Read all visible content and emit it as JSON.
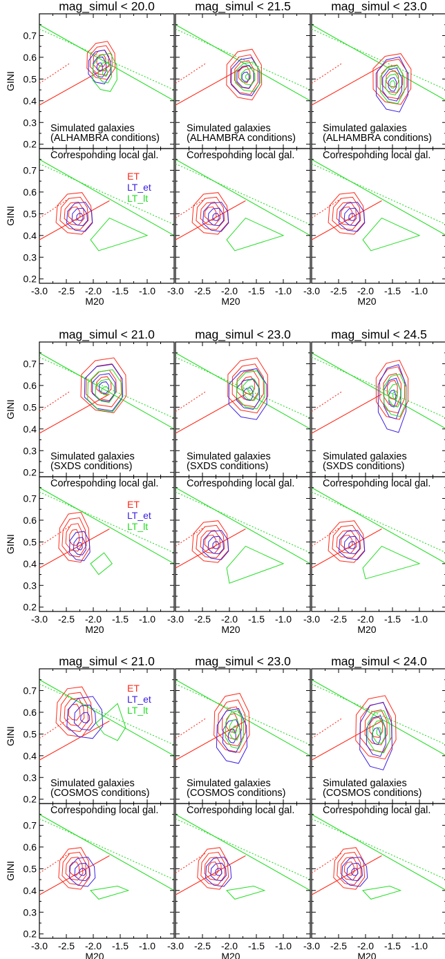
{
  "chart_data": {
    "type": "contour",
    "xlabel": "M20",
    "ylabel": "GINI",
    "xlim": [
      -3.0,
      -0.5
    ],
    "ylim": [
      0.18,
      0.8
    ],
    "xticks": [
      "-3.0",
      "-2.5",
      "-2.0",
      "-1.5",
      "-1.0"
    ],
    "yticks": [
      "0.2",
      "0.3",
      "0.4",
      "0.5",
      "0.6",
      "0.7"
    ],
    "legend": [
      {
        "label": "ET",
        "color": "#ff2a1a"
      },
      {
        "label": "LT_et",
        "color": "#3a1fe0"
      },
      {
        "label": "LT_lt",
        "color": "#22dd22"
      }
    ],
    "reference_lines": {
      "red_solid": [
        [
          -3.0,
          0.38
        ],
        [
          -1.7,
          0.56
        ]
      ],
      "red_dotted": [
        [
          -3.0,
          0.48
        ],
        [
          -2.45,
          0.57
        ]
      ],
      "green_solid": [
        [
          -3.0,
          0.75
        ],
        [
          -0.5,
          0.4
        ]
      ],
      "green_dotted": [
        [
          -3.0,
          0.73
        ],
        [
          -0.5,
          0.45
        ]
      ]
    },
    "blocks": [
      {
        "upper_text_1": "Simulated galaxies",
        "upper_text_2": "(ALHAMBRA conditions)",
        "lower_text": "Corresponding local gal.",
        "legend_in": "lower",
        "panels": [
          {
            "title": "mag_simul < 20.0",
            "upper": {
              "ET": {
                "c": [
                  -1.85,
                  0.585
                ],
                "r": [
                  0.28,
                  0.09
                ]
              },
              "LT_et": {
                "c": [
                  -1.88,
                  0.555
                ],
                "r": [
                  0.22,
                  0.08
                ]
              },
              "LT_lt": {
                "c": [
                  -1.78,
                  0.53
                ],
                "r": [
                  0.24,
                  0.09
                ]
              }
            },
            "lower": {
              "ET": {
                "c": [
                  -2.35,
                  0.5
                ],
                "r": [
                  0.35,
                  0.1
                ]
              },
              "LT_et": {
                "c": [
                  -2.25,
                  0.485
                ],
                "r": [
                  0.25,
                  0.07
                ]
              },
              "LT_lt": {
                "pts": [
                  [
                    -2.05,
                    0.38
                  ],
                  [
                    -1.7,
                    0.48
                  ],
                  [
                    -1.0,
                    0.4
                  ],
                  [
                    -1.9,
                    0.33
                  ]
                ]
              }
            }
          },
          {
            "title": "mag_simul < 21.5",
            "upper": {
              "ET": {
                "c": [
                  -1.72,
                  0.52
                ],
                "r": [
                  0.35,
                  0.12
                ]
              },
              "LT_et": {
                "c": [
                  -1.7,
                  0.51
                ],
                "r": [
                  0.28,
                  0.09
                ]
              },
              "LT_lt": {
                "c": [
                  -1.65,
                  0.51
                ],
                "r": [
                  0.25,
                  0.07
                ]
              }
            },
            "lower": {
              "ET": {
                "c": [
                  -2.35,
                  0.5
                ],
                "r": [
                  0.35,
                  0.1
                ]
              },
              "LT_et": {
                "c": [
                  -2.25,
                  0.485
                ],
                "r": [
                  0.25,
                  0.07
                ]
              },
              "LT_lt": {
                "pts": [
                  [
                    -2.05,
                    0.38
                  ],
                  [
                    -1.7,
                    0.48
                  ],
                  [
                    -1.0,
                    0.4
                  ],
                  [
                    -1.9,
                    0.33
                  ]
                ]
              }
            }
          },
          {
            "title": "mag_simul < 23.0",
            "upper": {
              "ET": {
                "c": [
                  -1.5,
                  0.5
                ],
                "r": [
                  0.38,
                  0.12
                ]
              },
              "LT_et": {
                "c": [
                  -1.5,
                  0.475
                ],
                "r": [
                  0.32,
                  0.13
                ]
              },
              "LT_lt": {
                "c": [
                  -1.5,
                  0.475
                ],
                "r": [
                  0.24,
                  0.09
                ]
              }
            },
            "lower": {
              "ET": {
                "c": [
                  -2.35,
                  0.5
                ],
                "r": [
                  0.35,
                  0.1
                ]
              },
              "LT_et": {
                "c": [
                  -2.25,
                  0.485
                ],
                "r": [
                  0.25,
                  0.07
                ]
              },
              "LT_lt": {
                "pts": [
                  [
                    -2.05,
                    0.38
                  ],
                  [
                    -1.7,
                    0.48
                  ],
                  [
                    -1.0,
                    0.4
                  ],
                  [
                    -1.9,
                    0.33
                  ]
                ]
              }
            }
          }
        ]
      },
      {
        "upper_text_1": "Simulated galaxies",
        "upper_text_2": "(SXDS conditions)",
        "lower_text": "Corresponding local gal.",
        "legend_in": "lower",
        "panels": [
          {
            "title": "mag_simul < 21.0",
            "upper": {
              "ET": {
                "c": [
                  -1.8,
                  0.6
                ],
                "r": [
                  0.45,
                  0.13
                ]
              },
              "LT_et": {
                "c": [
                  -1.8,
                  0.59
                ],
                "r": [
                  0.38,
                  0.11
                ]
              },
              "LT_lt": {
                "c": [
                  -1.78,
                  0.575
                ],
                "r": [
                  0.34,
                  0.1
                ]
              }
            },
            "lower": {
              "ET": {
                "c": [
                  -2.35,
                  0.52
                ],
                "r": [
                  0.3,
                  0.12
                ]
              },
              "LT_et": {
                "c": [
                  -2.25,
                  0.48
                ],
                "r": [
                  0.2,
                  0.07
                ]
              },
              "LT_lt": {
                "pts": [
                  [
                    -2.05,
                    0.4
                  ],
                  [
                    -1.8,
                    0.45
                  ],
                  [
                    -1.65,
                    0.4
                  ],
                  [
                    -1.9,
                    0.35
                  ]
                ]
              }
            }
          },
          {
            "title": "mag_simul < 23.0",
            "upper": {
              "ET": {
                "c": [
                  -1.65,
                  0.6
                ],
                "r": [
                  0.4,
                  0.13
                ]
              },
              "LT_et": {
                "c": [
                  -1.65,
                  0.56
                ],
                "r": [
                  0.38,
                  0.12
                ]
              },
              "LT_lt": {
                "c": [
                  -1.6,
                  0.58
                ],
                "r": [
                  0.28,
                  0.09
                ]
              }
            },
            "lower": {
              "ET": {
                "c": [
                  -2.35,
                  0.5
                ],
                "r": [
                  0.35,
                  0.1
                ]
              },
              "LT_et": {
                "c": [
                  -2.25,
                  0.485
                ],
                "r": [
                  0.25,
                  0.07
                ]
              },
              "LT_lt": {
                "pts": [
                  [
                    -2.05,
                    0.38
                  ],
                  [
                    -1.7,
                    0.48
                  ],
                  [
                    -1.0,
                    0.4
                  ],
                  [
                    -2.0,
                    0.31
                  ]
                ]
              }
            }
          },
          {
            "title": "mag_simul < 24.5",
            "upper": {
              "ET": {
                "c": [
                  -1.5,
                  0.58
                ],
                "r": [
                  0.32,
                  0.14
                ]
              },
              "LT_et": {
                "c": [
                  -1.5,
                  0.54
                ],
                "r": [
                  0.28,
                  0.16
                ]
              },
              "LT_lt": {
                "c": [
                  -1.45,
                  0.555
                ],
                "r": [
                  0.22,
                  0.1
                ]
              }
            },
            "lower": {
              "ET": {
                "c": [
                  -2.35,
                  0.5
                ],
                "r": [
                  0.35,
                  0.1
                ]
              },
              "LT_et": {
                "c": [
                  -2.25,
                  0.485
                ],
                "r": [
                  0.25,
                  0.07
                ]
              },
              "LT_lt": {
                "pts": [
                  [
                    -2.05,
                    0.38
                  ],
                  [
                    -1.7,
                    0.48
                  ],
                  [
                    -1.0,
                    0.4
                  ],
                  [
                    -2.0,
                    0.33
                  ]
                ]
              }
            }
          }
        ]
      },
      {
        "upper_text_1": "Simulated galaxies",
        "upper_text_2": "(COSMOS conditions)",
        "lower_text": "Corresponding local gal.",
        "legend_in": "upper",
        "panels": [
          {
            "title": "mag_simul < 21.0",
            "upper": {
              "ET": {
                "c": [
                  -2.35,
                  0.6
                ],
                "r": [
                  0.35,
                  0.12
                ]
              },
              "LT_et": {
                "c": [
                  -2.15,
                  0.575
                ],
                "r": [
                  0.35,
                  0.1
                ]
              },
              "LT_lt": {
                "pts": [
                  [
                    -1.95,
                    0.55
                  ],
                  [
                    -1.55,
                    0.64
                  ],
                  [
                    -1.4,
                    0.53
                  ],
                  [
                    -1.55,
                    0.47
                  ],
                  [
                    -1.8,
                    0.5
                  ]
                ]
              }
            },
            "lower": {
              "ET": {
                "c": [
                  -2.35,
                  0.5
                ],
                "r": [
                  0.3,
                  0.1
                ]
              },
              "LT_et": {
                "c": [
                  -2.2,
                  0.485
                ],
                "r": [
                  0.25,
                  0.07
                ]
              },
              "LT_lt": {
                "pts": [
                  [
                    -2.05,
                    0.4
                  ],
                  [
                    -1.55,
                    0.42
                  ],
                  [
                    -1.35,
                    0.4
                  ],
                  [
                    -1.9,
                    0.36
                  ]
                ]
              }
            }
          },
          {
            "title": "mag_simul < 23.0",
            "upper": {
              "ET": {
                "c": [
                  -1.95,
                  0.55
                ],
                "r": [
                  0.35,
                  0.14
                ]
              },
              "LT_et": {
                "c": [
                  -1.95,
                  0.49
                ],
                "r": [
                  0.3,
                  0.13
                ]
              },
              "LT_lt": {
                "c": [
                  -1.9,
                  0.52
                ],
                "r": [
                  0.18,
                  0.09
                ]
              }
            },
            "lower": {
              "ET": {
                "c": [
                  -2.3,
                  0.5
                ],
                "r": [
                  0.3,
                  0.1
                ]
              },
              "LT_et": {
                "c": [
                  -2.2,
                  0.485
                ],
                "r": [
                  0.25,
                  0.07
                ]
              },
              "LT_lt": {
                "pts": [
                  [
                    -2.05,
                    0.4
                  ],
                  [
                    -1.55,
                    0.42
                  ],
                  [
                    -1.35,
                    0.4
                  ],
                  [
                    -1.9,
                    0.36
                  ]
                ]
              }
            }
          },
          {
            "title": "mag_simul < 24.0",
            "upper": {
              "ET": {
                "c": [
                  -1.8,
                  0.53
                ],
                "r": [
                  0.4,
                  0.15
                ]
              },
              "LT_et": {
                "c": [
                  -1.8,
                  0.49
                ],
                "r": [
                  0.32,
                  0.16
                ]
              },
              "LT_lt": {
                "c": [
                  -1.75,
                  0.51
                ],
                "r": [
                  0.22,
                  0.1
                ]
              }
            },
            "lower": {
              "ET": {
                "c": [
                  -2.3,
                  0.5
                ],
                "r": [
                  0.3,
                  0.1
                ]
              },
              "LT_et": {
                "c": [
                  -2.2,
                  0.485
                ],
                "r": [
                  0.25,
                  0.07
                ]
              },
              "LT_lt": {
                "pts": [
                  [
                    -2.05,
                    0.4
                  ],
                  [
                    -1.55,
                    0.42
                  ],
                  [
                    -1.35,
                    0.4
                  ],
                  [
                    -1.9,
                    0.36
                  ]
                ]
              }
            }
          }
        ]
      }
    ]
  }
}
